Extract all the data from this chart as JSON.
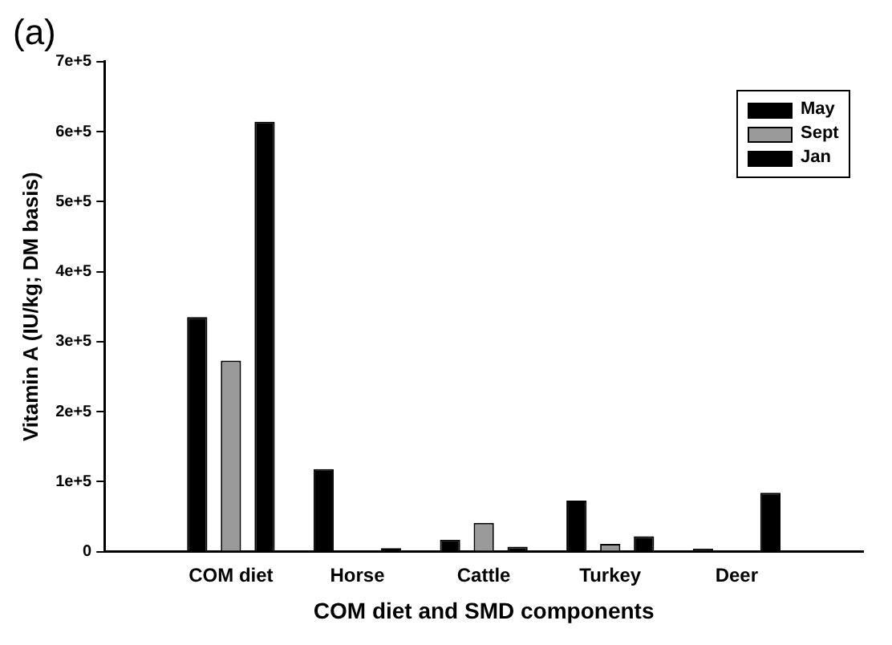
{
  "chart_data": {
    "type": "bar",
    "title": "(a)",
    "xlabel": "COM diet and SMD components",
    "ylabel": "Vitamin A (IU/kg; DM basis)",
    "categories": [
      "COM diet",
      "Horse",
      "Cattle",
      "Turkey",
      "Deer"
    ],
    "series": [
      {
        "name": "May",
        "color": "#000000",
        "values": [
          335000,
          118000,
          17000,
          73000,
          4000
        ]
      },
      {
        "name": "Sept",
        "color": "#9a9a9a",
        "values": [
          273000,
          null,
          41000,
          11000,
          null
        ]
      },
      {
        "name": "Jan",
        "color": "#000000",
        "values": [
          614000,
          5000,
          7000,
          22000,
          84000
        ]
      }
    ],
    "ylim": [
      0,
      700000
    ],
    "yticks": [
      0,
      {
        "value": 100000,
        "label": "1e+5"
      },
      {
        "value": 200000,
        "label": "2e+5"
      },
      {
        "value": 300000,
        "label": "3e+5"
      },
      {
        "value": 400000,
        "label": "4e+5"
      },
      {
        "value": 500000,
        "label": "5e+5"
      },
      {
        "value": 600000,
        "label": "6e+5"
      },
      {
        "value": 700000,
        "label": "7e+5"
      }
    ],
    "grid": false,
    "legend": "top right"
  }
}
